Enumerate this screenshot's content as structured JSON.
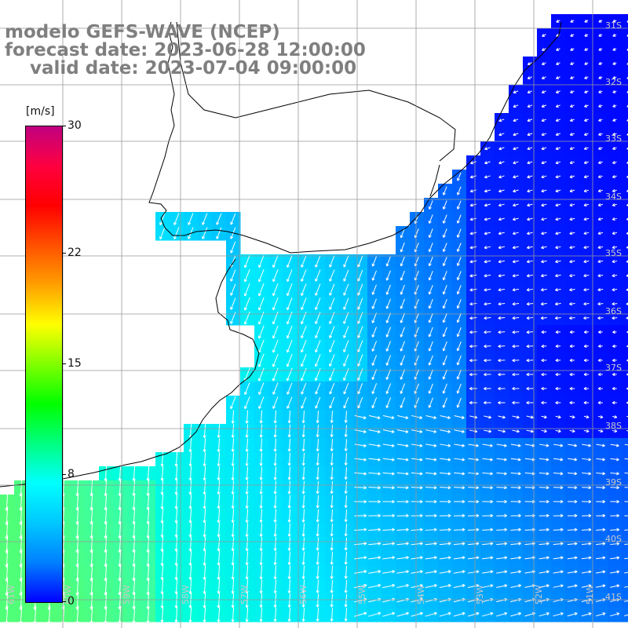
{
  "title": {
    "line1": "modelo GEFS-WAVE (NCEP)",
    "line2": "forecast date: 2023-06-28 12:00:00",
    "line3": "    valid date: 2023-07-04 09:00:00"
  },
  "colorbar": {
    "unit": "[m/s]",
    "ticks": [
      {
        "label": "30",
        "value": 30
      },
      {
        "label": "22",
        "value": 22
      },
      {
        "label": "15",
        "value": 15
      },
      {
        "label": "8",
        "value": 8
      },
      {
        "label": "0",
        "value": 0
      }
    ],
    "colors": [
      "#0000ff",
      "#0080ff",
      "#00c8ff",
      "#00ffff",
      "#00ff80",
      "#00ff00",
      "#80ff00",
      "#ffff00",
      "#ffa000",
      "#ff5000",
      "#ff0000",
      "#ff0040",
      "#c00080"
    ]
  },
  "lat_labels": [
    "31S",
    "32S",
    "33S",
    "34S",
    "35S",
    "36S",
    "37S",
    "38S",
    "39S",
    "40S",
    "41S"
  ],
  "lon_labels": [
    "61W",
    "60W",
    "59W",
    "58W",
    "57W",
    "56W",
    "55W",
    "54W",
    "53W",
    "52W",
    "51W"
  ],
  "colors": {
    "land": "#ffffff",
    "coast": "#000000",
    "grid": "#999999",
    "arrow": "#ffffff",
    "title": "#7f7f7f"
  }
}
